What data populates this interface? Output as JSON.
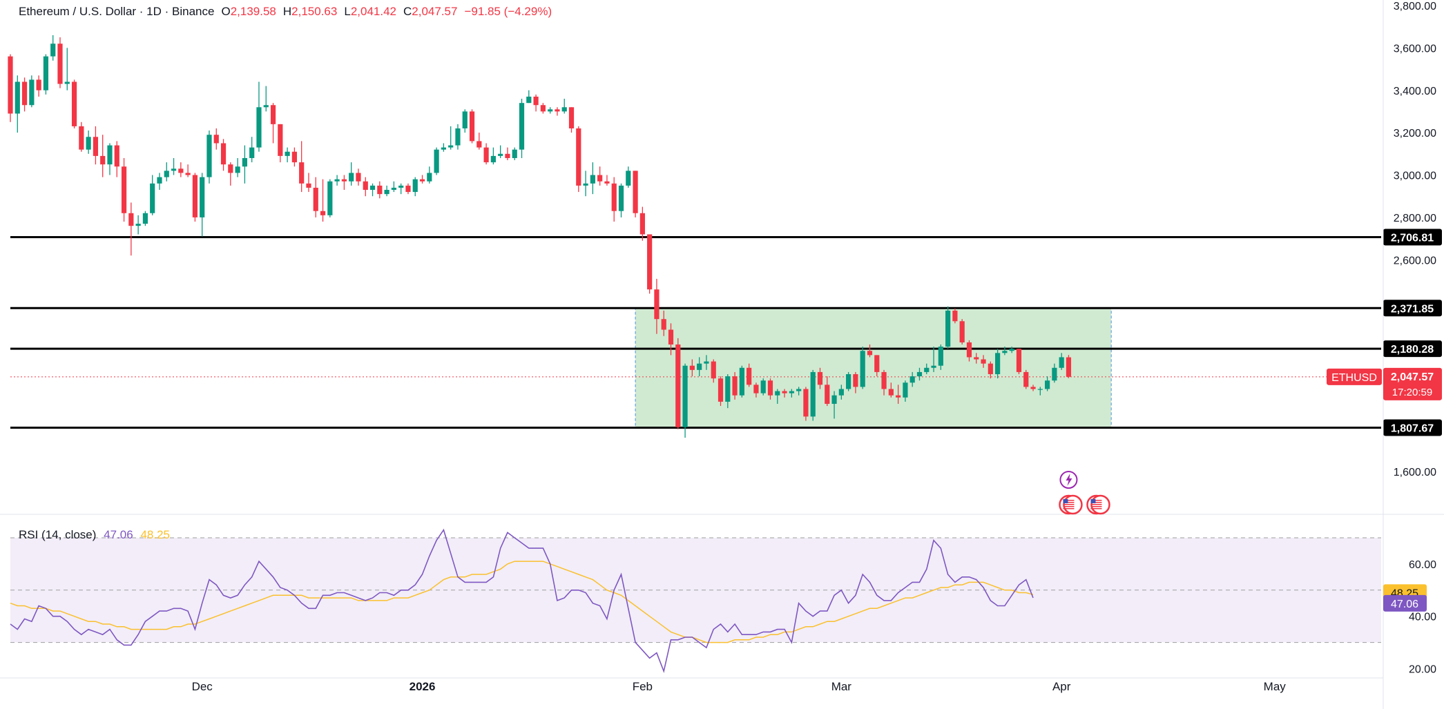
{
  "legend": {
    "symbol": "Ethereum / U.S. Dollar · 1D · Binance",
    "open_label": "O",
    "open": "2,139.58",
    "high_label": "H",
    "high": "2,150.63",
    "low_label": "L",
    "low": "2,041.42",
    "close_label": "C",
    "close": "2,047.57",
    "change": "−91.85 (−4.29%)"
  },
  "price_tag": {
    "ticker": "ETHUSD",
    "price": "2,047.57",
    "countdown": "17:20:59"
  },
  "rsi_legend": {
    "label": "RSI (14, close)",
    "rsi": "47.06",
    "ma": "48.25"
  },
  "colors": {
    "up": "#089981",
    "down": "#f23645",
    "rsi_line": "#7e57c2",
    "rsi_ma": "#fbc02d",
    "range_box": "#c8e6c9",
    "level_line": "#000000"
  },
  "chart_data": {
    "type": "candlestick",
    "price_axis": {
      "ylim": [
        1480,
        3800
      ],
      "ticks": [
        1600,
        2600,
        2800,
        3000,
        3200,
        3400,
        3600,
        3800
      ],
      "tick_labels": [
        "1,600.00",
        "2,600.00",
        "2,800.00",
        "3,000.00",
        "3,200.00",
        "3,400.00",
        "3,600.00",
        "3,800.00"
      ]
    },
    "x_axis": {
      "labels": [
        "Dec",
        "2026",
        "Feb",
        "Mar",
        "Apr",
        "May"
      ],
      "label_dates": [
        "2025-12-01",
        "2026-01-01",
        "2026-02-01",
        "2026-03-01",
        "2026-04-01",
        "2026-05-01"
      ],
      "start_date": "2025-11-04",
      "end_date": "2026-05-16"
    },
    "horizontal_levels": [
      2706.81,
      2371.85,
      2180.28,
      1807.67
    ],
    "horizontal_level_labels": [
      "2,706.81",
      "2,371.85",
      "2,180.28",
      "1,807.67"
    ],
    "range_box": {
      "start_date": "2026-01-31",
      "end_date": "2026-04-08",
      "top": 2371.85,
      "bottom": 1807.67
    },
    "candles": [
      [
        "2025-11-04",
        3560,
        3570,
        3250,
        3290
      ],
      [
        "2025-11-05",
        3290,
        3470,
        3200,
        3440
      ],
      [
        "2025-11-06",
        3440,
        3460,
        3300,
        3330
      ],
      [
        "2025-11-07",
        3330,
        3470,
        3320,
        3450
      ],
      [
        "2025-11-08",
        3450,
        3470,
        3370,
        3400
      ],
      [
        "2025-11-09",
        3400,
        3570,
        3380,
        3560
      ],
      [
        "2025-11-10",
        3560,
        3660,
        3540,
        3620
      ],
      [
        "2025-11-11",
        3620,
        3650,
        3410,
        3430
      ],
      [
        "2025-11-12",
        3430,
        3600,
        3400,
        3440
      ],
      [
        "2025-11-13",
        3440,
        3450,
        3220,
        3230
      ],
      [
        "2025-11-14",
        3230,
        3250,
        3110,
        3120
      ],
      [
        "2025-11-15",
        3120,
        3210,
        3100,
        3180
      ],
      [
        "2025-11-16",
        3180,
        3230,
        3050,
        3090
      ],
      [
        "2025-11-17",
        3090,
        3190,
        2990,
        3050
      ],
      [
        "2025-11-18",
        3050,
        3150,
        3000,
        3140
      ],
      [
        "2025-11-19",
        3140,
        3160,
        2990,
        3040
      ],
      [
        "2025-11-20",
        3040,
        3080,
        2780,
        2820
      ],
      [
        "2025-11-21",
        2820,
        2870,
        2620,
        2760
      ],
      [
        "2025-11-22",
        2760,
        2810,
        2720,
        2770
      ],
      [
        "2025-11-23",
        2770,
        2830,
        2760,
        2820
      ],
      [
        "2025-11-24",
        2820,
        3000,
        2810,
        2960
      ],
      [
        "2025-11-25",
        2960,
        3010,
        2930,
        2990
      ],
      [
        "2025-11-26",
        2990,
        3060,
        2970,
        3020
      ],
      [
        "2025-11-27",
        3020,
        3080,
        3000,
        3030
      ],
      [
        "2025-11-28",
        3030,
        3060,
        2990,
        3010
      ],
      [
        "2025-11-29",
        3010,
        3050,
        2990,
        3000
      ],
      [
        "2025-11-30",
        3000,
        3010,
        2780,
        2800
      ],
      [
        "2025-12-01",
        2800,
        3010,
        2710,
        2990
      ],
      [
        "2025-12-02",
        2990,
        3210,
        2960,
        3190
      ],
      [
        "2025-12-03",
        3190,
        3220,
        3120,
        3150
      ],
      [
        "2025-12-04",
        3150,
        3170,
        3020,
        3050
      ],
      [
        "2025-12-05",
        3050,
        3060,
        2950,
        3010
      ],
      [
        "2025-12-06",
        3010,
        3080,
        2990,
        3040
      ],
      [
        "2025-12-07",
        3040,
        3140,
        2960,
        3080
      ],
      [
        "2025-12-08",
        3080,
        3180,
        3060,
        3130
      ],
      [
        "2025-12-09",
        3130,
        3440,
        3110,
        3320
      ],
      [
        "2025-12-10",
        3320,
        3420,
        3300,
        3330
      ],
      [
        "2025-12-11",
        3330,
        3340,
        3150,
        3240
      ],
      [
        "2025-12-12",
        3240,
        3240,
        3060,
        3090
      ],
      [
        "2025-12-13",
        3090,
        3130,
        3060,
        3110
      ],
      [
        "2025-12-14",
        3110,
        3130,
        3040,
        3060
      ],
      [
        "2025-12-15",
        3060,
        3160,
        2920,
        2960
      ],
      [
        "2025-12-16",
        2960,
        3010,
        2920,
        2940
      ],
      [
        "2025-12-17",
        2940,
        2990,
        2800,
        2830
      ],
      [
        "2025-12-18",
        2830,
        2980,
        2780,
        2810
      ],
      [
        "2025-12-19",
        2810,
        2980,
        2800,
        2970
      ],
      [
        "2025-12-20",
        2970,
        3000,
        2950,
        2980
      ],
      [
        "2025-12-21",
        2980,
        3000,
        2930,
        2970
      ],
      [
        "2025-12-22",
        2970,
        3060,
        2950,
        3010
      ],
      [
        "2025-12-23",
        3010,
        3030,
        2950,
        2970
      ],
      [
        "2025-12-24",
        2970,
        2990,
        2900,
        2930
      ],
      [
        "2025-12-25",
        2930,
        2960,
        2900,
        2950
      ],
      [
        "2025-12-26",
        2950,
        2970,
        2890,
        2910
      ],
      [
        "2025-12-27",
        2910,
        2950,
        2900,
        2930
      ],
      [
        "2025-12-28",
        2930,
        2970,
        2920,
        2940
      ],
      [
        "2025-12-29",
        2940,
        2960,
        2910,
        2950
      ],
      [
        "2025-12-30",
        2950,
        2960,
        2910,
        2920
      ],
      [
        "2025-12-31",
        2920,
        2990,
        2900,
        2980
      ],
      [
        "2026-01-01",
        2980,
        3000,
        2960,
        2970
      ],
      [
        "2026-01-02",
        2970,
        3040,
        2960,
        3010
      ],
      [
        "2026-01-03",
        3010,
        3130,
        3000,
        3120
      ],
      [
        "2026-01-04",
        3120,
        3150,
        3110,
        3130
      ],
      [
        "2026-01-05",
        3130,
        3230,
        3120,
        3140
      ],
      [
        "2026-01-06",
        3140,
        3240,
        3120,
        3220
      ],
      [
        "2026-01-07",
        3220,
        3310,
        3200,
        3300
      ],
      [
        "2026-01-08",
        3300,
        3310,
        3150,
        3160
      ],
      [
        "2026-01-09",
        3160,
        3200,
        3120,
        3130
      ],
      [
        "2026-01-10",
        3130,
        3150,
        3050,
        3060
      ],
      [
        "2026-01-11",
        3060,
        3130,
        3050,
        3090
      ],
      [
        "2026-01-12",
        3090,
        3140,
        3080,
        3100
      ],
      [
        "2026-01-13",
        3100,
        3130,
        3070,
        3080
      ],
      [
        "2026-01-14",
        3080,
        3130,
        3070,
        3120
      ],
      [
        "2026-01-15",
        3120,
        3360,
        3080,
        3340
      ],
      [
        "2026-01-16",
        3340,
        3400,
        3340,
        3370
      ],
      [
        "2026-01-17",
        3370,
        3380,
        3300,
        3330
      ],
      [
        "2026-01-18",
        3330,
        3340,
        3290,
        3300
      ],
      [
        "2026-01-19",
        3300,
        3320,
        3290,
        3310
      ],
      [
        "2026-01-20",
        3310,
        3320,
        3280,
        3300
      ],
      [
        "2026-01-21",
        3300,
        3360,
        3290,
        3320
      ],
      [
        "2026-01-22",
        3320,
        3320,
        3200,
        3220
      ],
      [
        "2026-01-23",
        3220,
        3230,
        2920,
        2950
      ],
      [
        "2026-01-24",
        2950,
        3020,
        2900,
        2960
      ],
      [
        "2026-01-25",
        2960,
        3060,
        2910,
        3000
      ],
      [
        "2026-01-26",
        3000,
        3040,
        2950,
        2970
      ],
      [
        "2026-01-27",
        2970,
        3000,
        2950,
        2960
      ],
      [
        "2026-01-28",
        2960,
        2990,
        2780,
        2830
      ],
      [
        "2026-01-29",
        2830,
        2960,
        2800,
        2950
      ],
      [
        "2026-01-30",
        2950,
        3040,
        2940,
        3020
      ],
      [
        "2026-01-31",
        3020,
        3020,
        2800,
        2820
      ],
      [
        "2026-02-01",
        2820,
        2850,
        2690,
        2720
      ],
      [
        "2026-02-02",
        2720,
        2720,
        2440,
        2460
      ],
      [
        "2026-02-03",
        2460,
        2510,
        2250,
        2320
      ],
      [
        "2026-02-04",
        2320,
        2360,
        2240,
        2270
      ],
      [
        "2026-02-05",
        2270,
        2300,
        2150,
        2200
      ],
      [
        "2026-02-06",
        2200,
        2230,
        1800,
        1810
      ],
      [
        "2026-02-07",
        1810,
        2110,
        1760,
        2100
      ],
      [
        "2026-02-08",
        2100,
        2130,
        2050,
        2080
      ],
      [
        "2026-02-09",
        2080,
        2140,
        2050,
        2110
      ],
      [
        "2026-02-10",
        2110,
        2150,
        2080,
        2120
      ],
      [
        "2026-02-11",
        2120,
        2130,
        2020,
        2040
      ],
      [
        "2026-02-12",
        2040,
        2050,
        1910,
        1930
      ],
      [
        "2026-02-13",
        1930,
        2060,
        1900,
        2050
      ],
      [
        "2026-02-14",
        2050,
        2070,
        1940,
        1960
      ],
      [
        "2026-02-15",
        1960,
        2100,
        1950,
        2090
      ],
      [
        "2026-02-16",
        2090,
        2110,
        2000,
        2010
      ],
      [
        "2026-02-17",
        2010,
        2020,
        1950,
        1970
      ],
      [
        "2026-02-18",
        1970,
        2040,
        1960,
        2030
      ],
      [
        "2026-02-19",
        2030,
        2040,
        1940,
        1960
      ],
      [
        "2026-02-20",
        1960,
        1990,
        1920,
        1980
      ],
      [
        "2026-02-21",
        1980,
        1990,
        1950,
        1970
      ],
      [
        "2026-02-22",
        1970,
        1990,
        1950,
        1980
      ],
      [
        "2026-02-23",
        1980,
        2000,
        1960,
        1990
      ],
      [
        "2026-02-24",
        1990,
        2000,
        1840,
        1860
      ],
      [
        "2026-02-25",
        1860,
        2080,
        1840,
        2070
      ],
      [
        "2026-02-26",
        2070,
        2090,
        1990,
        2010
      ],
      [
        "2026-02-27",
        2010,
        2050,
        1910,
        1920
      ],
      [
        "2026-02-28",
        1920,
        1980,
        1850,
        1960
      ],
      [
        "2026-03-01",
        1960,
        2010,
        1940,
        1990
      ],
      [
        "2026-03-02",
        1990,
        2070,
        1980,
        2060
      ],
      [
        "2026-03-03",
        2060,
        2070,
        1970,
        2000
      ],
      [
        "2026-03-04",
        2000,
        2190,
        1990,
        2170
      ],
      [
        "2026-03-05",
        2170,
        2200,
        2140,
        2150
      ],
      [
        "2026-03-06",
        2150,
        2150,
        2050,
        2070
      ],
      [
        "2026-03-07",
        2070,
        2080,
        1960,
        1990
      ],
      [
        "2026-03-08",
        1990,
        2020,
        1950,
        1960
      ],
      [
        "2026-03-09",
        1960,
        2010,
        1920,
        1950
      ],
      [
        "2026-03-10",
        1950,
        2030,
        1930,
        2020
      ],
      [
        "2026-03-11",
        2020,
        2070,
        2000,
        2050
      ],
      [
        "2026-03-12",
        2050,
        2090,
        2030,
        2070
      ],
      [
        "2026-03-13",
        2070,
        2110,
        2060,
        2090
      ],
      [
        "2026-03-14",
        2090,
        2190,
        2070,
        2100
      ],
      [
        "2026-03-15",
        2100,
        2200,
        2080,
        2190
      ],
      [
        "2026-03-16",
        2190,
        2380,
        2180,
        2360
      ],
      [
        "2026-03-17",
        2360,
        2370,
        2300,
        2310
      ],
      [
        "2026-03-18",
        2310,
        2320,
        2200,
        2210
      ],
      [
        "2026-03-19",
        2210,
        2220,
        2120,
        2140
      ],
      [
        "2026-03-20",
        2140,
        2160,
        2110,
        2130
      ],
      [
        "2026-03-21",
        2130,
        2150,
        2090,
        2110
      ],
      [
        "2026-03-22",
        2110,
        2120,
        2040,
        2060
      ],
      [
        "2026-03-23",
        2060,
        2180,
        2040,
        2160
      ],
      [
        "2026-03-24",
        2160,
        2190,
        2150,
        2170
      ],
      [
        "2026-03-25",
        2170,
        2190,
        2160,
        2180
      ],
      [
        "2026-03-26",
        2180,
        2180,
        2060,
        2070
      ],
      [
        "2026-03-27",
        2070,
        2080,
        1990,
        2000
      ],
      [
        "2026-03-28",
        2000,
        2010,
        1980,
        1990
      ],
      [
        "2026-03-29",
        1990,
        2000,
        1960,
        1990
      ],
      [
        "2026-03-30",
        1990,
        2050,
        1980,
        2030
      ],
      [
        "2026-03-31",
        2030,
        2110,
        2020,
        2090
      ],
      [
        "2026-04-01",
        2090,
        2160,
        2080,
        2140
      ],
      [
        "2026-04-02",
        2139.58,
        2150.63,
        2041.42,
        2047.57
      ]
    ],
    "rsi_panel": {
      "label": "RSI (14, close)",
      "ylim": [
        13,
        75
      ],
      "bands": [
        30,
        50,
        70
      ],
      "tick_labels": [
        "20.00",
        "40.00",
        "60.00"
      ],
      "ticks": [
        20,
        40,
        60
      ],
      "rsi": [
        37,
        35,
        39,
        38,
        44,
        43,
        40,
        40,
        38,
        35,
        33,
        35,
        34,
        33,
        35,
        31,
        29,
        29,
        33,
        38,
        40,
        42,
        42,
        43,
        43,
        42,
        35,
        45,
        54,
        52,
        48,
        47,
        48,
        52,
        55,
        61,
        58,
        55,
        51,
        50,
        48,
        45,
        43,
        43,
        48,
        48,
        49,
        49,
        48,
        47,
        46,
        47,
        49,
        49,
        48,
        50,
        50,
        52,
        56,
        63,
        69,
        73,
        64,
        55,
        53,
        53,
        53,
        53,
        55,
        66,
        72,
        70,
        68,
        66,
        66,
        66,
        60,
        46,
        47,
        50,
        50,
        49,
        45,
        44,
        39,
        50,
        56,
        43,
        30,
        27,
        24,
        26,
        19,
        31,
        31,
        32,
        32,
        30,
        28,
        35,
        37,
        34,
        37,
        33,
        33,
        33,
        34,
        34,
        35,
        35,
        30,
        45,
        42,
        40,
        42,
        42,
        48,
        50,
        45,
        48,
        56,
        53,
        48,
        46,
        46,
        49,
        51,
        53,
        53,
        58,
        69,
        66,
        56,
        53,
        55,
        55,
        54,
        51,
        46,
        44,
        44,
        48,
        52,
        54,
        47.06
      ],
      "ma": [
        45,
        44,
        44,
        43,
        43,
        43,
        42,
        42,
        41,
        40,
        39,
        38,
        38,
        37,
        37,
        36,
        36,
        35,
        35,
        35,
        35,
        35,
        35,
        36,
        36,
        37,
        37,
        38,
        39,
        40,
        41,
        42,
        43,
        44,
        45,
        46,
        47,
        48,
        48,
        48,
        48,
        48,
        47,
        47,
        47,
        47,
        47,
        47,
        47,
        46,
        46,
        46,
        46,
        46,
        47,
        47,
        47,
        48,
        49,
        50,
        52,
        54,
        55,
        55,
        55,
        56,
        56,
        56,
        57,
        58,
        60,
        61,
        61,
        61,
        61,
        61,
        60,
        59,
        58,
        57,
        56,
        55,
        54,
        52,
        50,
        49,
        48,
        46,
        44,
        42,
        40,
        38,
        36,
        34,
        33,
        32,
        32,
        31,
        30,
        30,
        30,
        30,
        31,
        31,
        31,
        32,
        32,
        33,
        33,
        34,
        34,
        35,
        36,
        36,
        37,
        38,
        38,
        39,
        40,
        41,
        42,
        43,
        43,
        44,
        45,
        46,
        47,
        47,
        48,
        49,
        50,
        51,
        51,
        52,
        52,
        53,
        53,
        53,
        52,
        51,
        50,
        50,
        49,
        49,
        48.25
      ]
    }
  }
}
